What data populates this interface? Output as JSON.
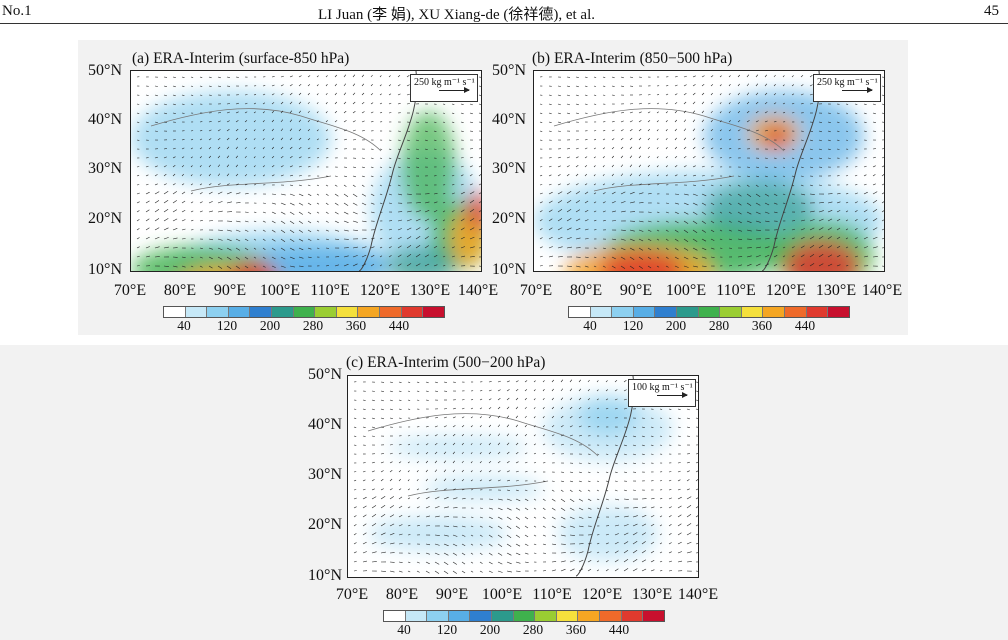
{
  "header": {
    "left": "No.1",
    "center": "LI Juan (李  娟), XU Xiang-de (徐祥德), et al.",
    "right": "45"
  },
  "panels": [
    {
      "title": "(a) ERA-Interim (surface-850 hPa)",
      "ref_vector": "250 kg m⁻¹ s⁻¹"
    },
    {
      "title": "(b) ERA-Interim (850−500 hPa)",
      "ref_vector": "250 kg m⁻¹ s⁻¹"
    },
    {
      "title": "(c) ERA-Interim (500−200 hPa)",
      "ref_vector": "100 kg m⁻¹ s⁻¹"
    }
  ],
  "y_ticks": [
    "50°N",
    "40°N",
    "30°N",
    "20°N",
    "10°N"
  ],
  "x_ticks": [
    "70°E",
    "80°E",
    "90°E",
    "100°E",
    "110°E",
    "120°E",
    "130°E",
    "140°E"
  ],
  "colorbar": {
    "ticks": [
      "40",
      "120",
      "200",
      "280",
      "360",
      "440"
    ],
    "colors": [
      "#ffffff",
      "#c6e8f7",
      "#8dd0f0",
      "#58aee6",
      "#2f7fcf",
      "#2c9a8c",
      "#3fb14d",
      "#9acd32",
      "#f5e03c",
      "#f5a623",
      "#ef6a2a",
      "#e03a2e",
      "#c8102e"
    ]
  }
}
